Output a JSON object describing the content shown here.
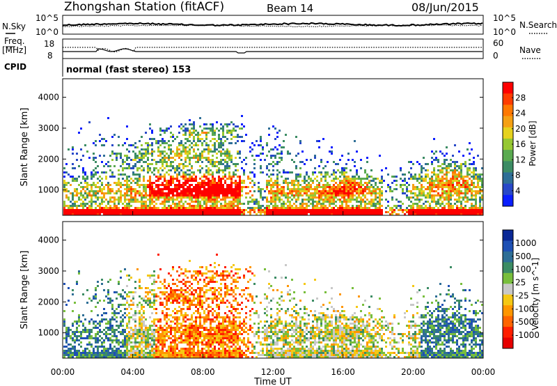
{
  "header": {
    "station": "Zhongshan Station (fitACF)",
    "beam": "Beam 14",
    "date": "08/Jun/2015"
  },
  "noise_panel": {
    "left_label": "N.Sky",
    "right_label": "N.Search",
    "left_ticks": [
      "10^5",
      "10^0"
    ],
    "right_ticks": [
      "10^5",
      "10^0"
    ]
  },
  "freq_panel": {
    "left_label_line1": "Freq.",
    "left_label_line2": "[MHz]",
    "left_ticks": [
      "18",
      "8"
    ],
    "right_ticks": [
      "60",
      "0"
    ],
    "right_label": "Nave"
  },
  "cpid_panel": {
    "label": "CPID",
    "text": "normal (fast stereo) 153"
  },
  "chart_data": [
    {
      "type": "heatmap",
      "name": "power",
      "ylabel": "Slant Range [km]",
      "y_ticks": [
        1000,
        2000,
        3000,
        4000
      ],
      "ylim": [
        180,
        4600
      ],
      "colorbar_label": "Power [dB]",
      "colorbar_ticks": [
        "4",
        "8",
        "12",
        "16",
        "20",
        "24",
        "28"
      ],
      "colorbar_colors": [
        "#0a1eff",
        "#2848c8",
        "#2e6e96",
        "#3c8c64",
        "#5aaa50",
        "#96c832",
        "#e6d21e",
        "#f5a014",
        "#ff7800",
        "#ff3c00",
        "#ff0000"
      ]
    },
    {
      "type": "heatmap",
      "name": "velocity",
      "ylabel": "Slant Range [km]",
      "y_ticks": [
        1000,
        2000,
        3000,
        4000
      ],
      "ylim": [
        180,
        4600
      ],
      "colorbar_label": "Velocity [m s^-1]",
      "colorbar_ticks": [
        "1000",
        "500",
        "100",
        "25",
        "-25",
        "-100",
        "-500",
        "-1000"
      ],
      "colorbar_colors": [
        "#0a2896",
        "#1e50b4",
        "#2e6e96",
        "#3c8c64",
        "#78be3c",
        "#c8c8c8",
        "#f5c814",
        "#ff9600",
        "#ff6400",
        "#ff1e00",
        "#e60000"
      ]
    }
  ],
  "x_axis": {
    "label": "Time UT",
    "ticks": [
      "00:00",
      "04:00",
      "08:00",
      "12:00",
      "16:00",
      "20:00",
      "00:00"
    ]
  }
}
